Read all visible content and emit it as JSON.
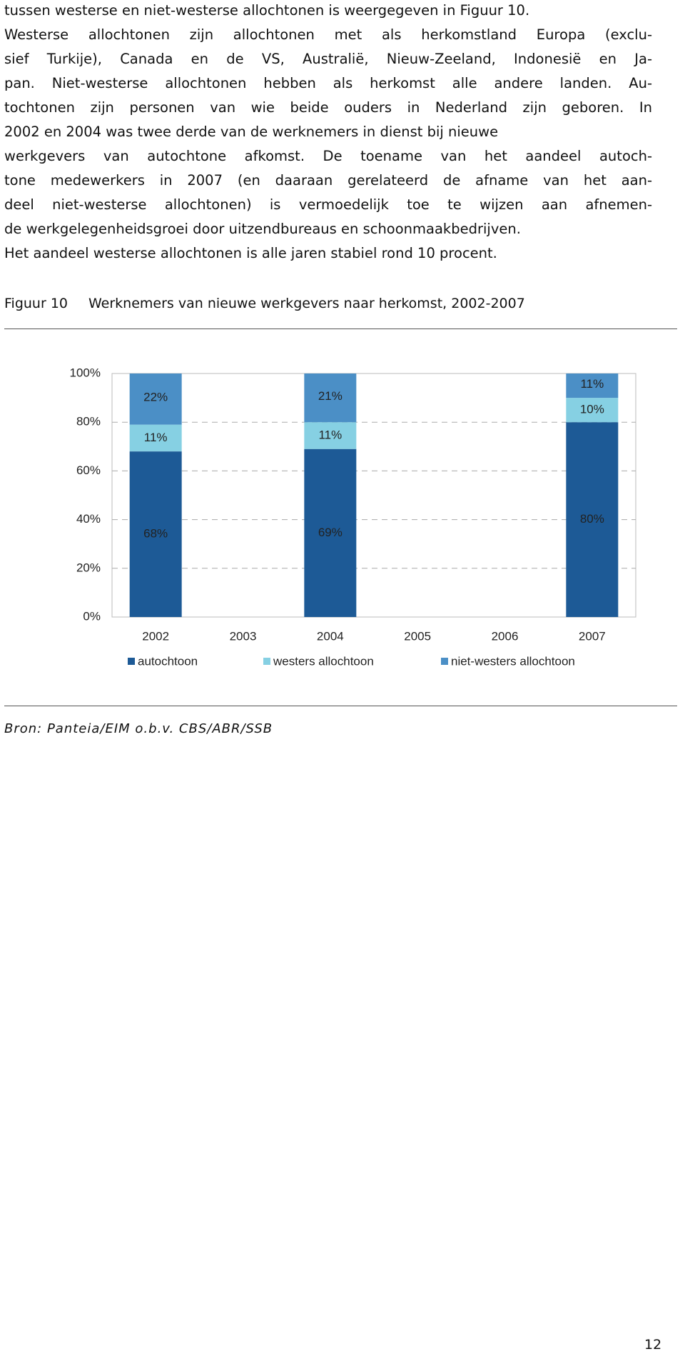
{
  "paragraph": {
    "lines": [
      "tussen westerse en niet-westerse allochtonen is weergegeven in Figuur 10.",
      "Westerse allochtonen zijn allochtonen met als herkomstland Europa (exclu-",
      "sief Turkije), Canada en de VS, Australië, Nieuw-Zeeland, Indonesië en Ja-",
      "pan. Niet-westerse allochtonen hebben als herkomst alle andere landen. Au-",
      "tochtonen zijn personen van wie beide ouders in Nederland zijn geboren. In",
      "2002 en 2004 was twee derde van de werknemers in dienst bij nieuwe",
      "werkgevers van autochtone afkomst. De toename van het aandeel autoch-",
      "tone medewerkers in 2007 (en daaraan gerelateerd de afname van het aan-",
      "deel niet-westerse allochtonen) is vermoedelijk toe te wijzen aan afnemen-",
      "de werkgelegenheidsgroei door uitzendbureaus en schoonmaakbedrijven.",
      "Het aandeel westerse allochtonen is alle jaren stabiel rond 10 procent."
    ]
  },
  "figure": {
    "number": "Figuur 10",
    "caption": "Werknemers van nieuwe werkgevers naar herkomst, 2002-2007"
  },
  "chart_data": {
    "type": "stacked_bar",
    "categories": [
      "2002",
      "2003",
      "2004",
      "2005",
      "2006",
      "2007"
    ],
    "series": [
      {
        "name": "autochtoon",
        "color": "#1d5a96",
        "values": [
          68,
          null,
          69,
          null,
          null,
          80
        ],
        "value_labels": [
          "68%",
          null,
          "69%",
          null,
          null,
          "80%"
        ]
      },
      {
        "name": "westers allochtoon",
        "color": "#86d0e3",
        "values": [
          11,
          null,
          11,
          null,
          null,
          10
        ],
        "value_labels": [
          "11%",
          null,
          "11%",
          null,
          null,
          "10%"
        ]
      },
      {
        "name": "niet-westers allochtoon",
        "color": "#4b8fc6",
        "values": [
          22,
          null,
          21,
          null,
          null,
          11
        ],
        "value_labels": [
          "22%",
          null,
          "21%",
          null,
          null,
          "11%"
        ]
      }
    ],
    "ylim": [
      0,
      100
    ],
    "yticks": [
      {
        "value": 0,
        "label": "0%"
      },
      {
        "value": 20,
        "label": "20%"
      },
      {
        "value": 40,
        "label": "40%"
      },
      {
        "value": 60,
        "label": "60%"
      },
      {
        "value": 80,
        "label": "80%"
      },
      {
        "value": 100,
        "label": "100%"
      }
    ],
    "grid": true,
    "legend": "bottom"
  },
  "source": "Bron: Panteia/EIM o.b.v. CBS/ABR/SSB",
  "page_number": "12"
}
